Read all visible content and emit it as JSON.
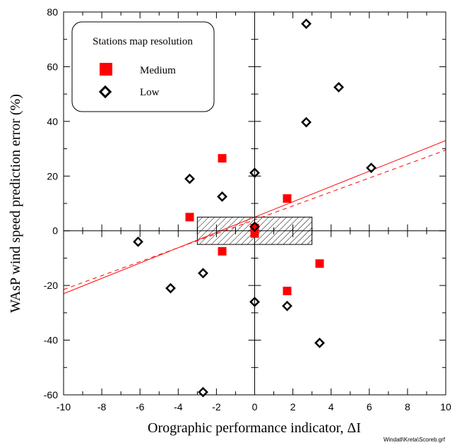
{
  "chart_data": {
    "type": "scatter",
    "xlabel": "Orographic performance indicator, ΔI",
    "ylabel": "WAsP wind speed prediction error (%)",
    "xlim": [
      -10,
      10
    ],
    "ylim": [
      -60,
      80
    ],
    "x_ticks": [
      -10,
      -8,
      -6,
      -4,
      -2,
      0,
      2,
      4,
      6,
      8,
      10
    ],
    "y_ticks": [
      -60,
      -40,
      -20,
      0,
      20,
      40,
      60,
      80
    ],
    "grid": false,
    "legend": {
      "title": "Stations map resolution",
      "position": "top-left"
    },
    "series": [
      {
        "name": "Medium",
        "marker": "filled-square",
        "color": "#ff0000",
        "points": [
          {
            "x": -3.4,
            "y": 5
          },
          {
            "x": -1.7,
            "y": 26.5
          },
          {
            "x": -1.7,
            "y": -7.5
          },
          {
            "x": 0,
            "y": 1
          },
          {
            "x": 0,
            "y": -1
          },
          {
            "x": 1.7,
            "y": 11.8
          },
          {
            "x": 1.7,
            "y": -22
          },
          {
            "x": 3.4,
            "y": -12
          }
        ]
      },
      {
        "name": "Low",
        "marker": "open-diamond",
        "color": "#000000",
        "points": [
          {
            "x": -6.1,
            "y": -4
          },
          {
            "x": -4.4,
            "y": -21
          },
          {
            "x": -3.4,
            "y": 19
          },
          {
            "x": -2.7,
            "y": -15.5
          },
          {
            "x": -2.7,
            "y": -59
          },
          {
            "x": -1.7,
            "y": 12.5
          },
          {
            "x": 0,
            "y": 21.2
          },
          {
            "x": 0,
            "y": 1.5
          },
          {
            "x": 0,
            "y": -26
          },
          {
            "x": 1.7,
            "y": -27.5
          },
          {
            "x": 2.7,
            "y": 75.7
          },
          {
            "x": 2.7,
            "y": 39.7
          },
          {
            "x": 3.4,
            "y": -41
          },
          {
            "x": 4.4,
            "y": 52.5
          },
          {
            "x": 6.1,
            "y": 23
          }
        ]
      }
    ],
    "fit_lines": [
      {
        "style": "solid",
        "color": "#ff0000",
        "from": [
          -10,
          -23
        ],
        "to": [
          10,
          33
        ]
      },
      {
        "style": "dashed",
        "color": "#ff0000",
        "from": [
          -10,
          -21.5
        ],
        "to": [
          10,
          29.5
        ]
      }
    ],
    "hatched_box": {
      "x": [
        -3,
        3
      ],
      "y": [
        -5,
        5
      ]
    }
  },
  "footnote": "Windatl\\Kreta\\Scoreb.grf",
  "colors": {
    "axis": "#000000",
    "medium": "#ff0000",
    "low": "#000000"
  }
}
